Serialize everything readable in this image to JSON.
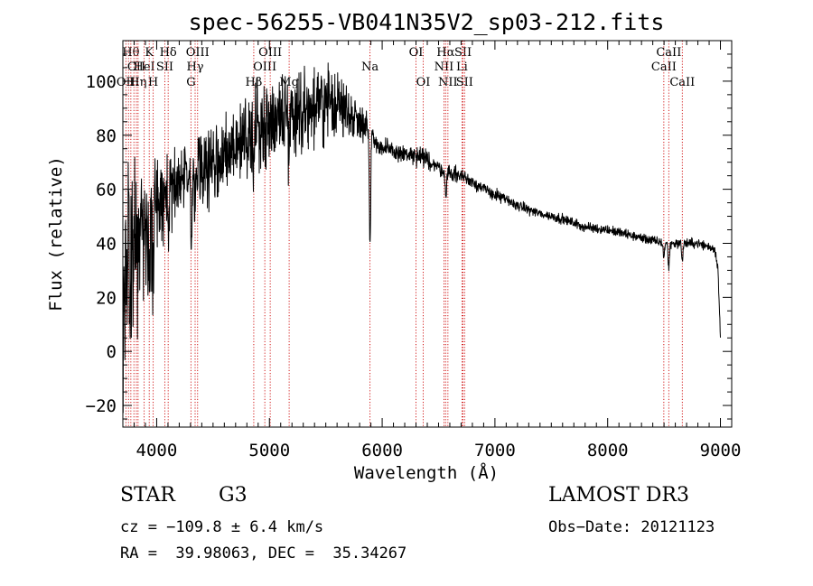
{
  "chart_data": {
    "type": "line",
    "title": "spec-56255-VB041N35V2_sp03-212.fits",
    "xlabel": "Wavelength (Å)",
    "ylabel": "Flux (relative)",
    "xlim": [
      3700,
      9100
    ],
    "ylim": [
      -28,
      115
    ],
    "x_major_ticks": [
      4000,
      5000,
      6000,
      7000,
      8000,
      9000
    ],
    "x_tick_labels": [
      "4000",
      "5000",
      "6000",
      "7000",
      "8000",
      "9000"
    ],
    "y_major_ticks": [
      -20,
      0,
      20,
      40,
      60,
      80,
      100
    ],
    "y_tick_labels": [
      "−20",
      "0",
      "20",
      "40",
      "60",
      "80",
      "100"
    ],
    "grid": false,
    "line_color": "#000000",
    "marker_color": "#cc0000",
    "spectrum_anchors": {
      "x": [
        3700,
        3730,
        3760,
        3800,
        3850,
        3900,
        3950,
        4000,
        4100,
        4200,
        4300,
        4400,
        4500,
        4600,
        4700,
        4800,
        4900,
        5000,
        5100,
        5200,
        5300,
        5400,
        5500,
        5600,
        5700,
        5800,
        5850,
        5900,
        6000,
        6100,
        6200,
        6300,
        6400,
        6500,
        6600,
        6700,
        6800,
        6900,
        7000,
        7200,
        7400,
        7600,
        7800,
        8000,
        8200,
        8400,
        8500,
        8600,
        8800,
        8950,
        8980,
        9000
      ],
      "y": [
        15,
        30,
        35,
        35,
        42,
        48,
        50,
        55,
        60,
        62,
        62,
        67,
        70,
        72,
        74,
        80,
        83,
        85,
        88,
        88,
        90,
        90,
        92,
        92,
        88,
        86,
        84,
        80,
        75,
        74,
        73,
        72,
        71,
        68,
        66,
        65,
        63,
        60,
        58,
        54,
        51,
        49,
        46,
        45,
        43,
        41,
        40,
        40,
        40,
        38,
        30,
        5
      ],
      "noise": [
        38,
        35,
        30,
        28,
        26,
        22,
        20,
        16,
        12,
        12,
        11,
        12,
        12,
        12,
        13,
        14,
        14,
        14,
        14,
        13,
        12,
        12,
        11,
        10,
        8,
        6,
        5,
        4,
        3,
        3,
        3,
        3,
        3,
        2.5,
        2.5,
        2.5,
        2,
        2,
        2,
        1.5,
        1.5,
        1.5,
        1.5,
        1.5,
        1.5,
        1.5,
        1.5,
        1.5,
        1.5,
        1.5,
        1.5,
        1.5
      ]
    },
    "absorption_features": [
      {
        "x": 3934,
        "depth": 28
      },
      {
        "x": 3969,
        "depth": 26
      },
      {
        "x": 4102,
        "depth": 15
      },
      {
        "x": 4308,
        "depth": 18
      },
      {
        "x": 4341,
        "depth": 12
      },
      {
        "x": 4861,
        "depth": 15
      },
      {
        "x": 5173,
        "depth": 12
      },
      {
        "x": 5892,
        "depth": 38
      },
      {
        "x": 6563,
        "depth": 10
      },
      {
        "x": 8498,
        "depth": 5
      },
      {
        "x": 8542,
        "depth": 9
      },
      {
        "x": 8662,
        "depth": 6
      }
    ],
    "line_markers": [
      {
        "x": 3727,
        "label": "OII",
        "row": 3
      },
      {
        "x": 3750,
        "label": "",
        "row": 0
      },
      {
        "x": 3771,
        "label": "Hθ",
        "row": 1
      },
      {
        "x": 3798,
        "label": "",
        "row": 0
      },
      {
        "x": 3820,
        "label": "CII",
        "row": 2
      },
      {
        "x": 3835,
        "label": "Hη",
        "row": 3
      },
      {
        "x": 3889,
        "label": "HeI",
        "row": 2
      },
      {
        "x": 3934,
        "label": "K",
        "row": 1
      },
      {
        "x": 3969,
        "label": "H",
        "row": 3
      },
      {
        "x": 4072,
        "label": "SII",
        "row": 2
      },
      {
        "x": 4102,
        "label": "Hδ",
        "row": 1
      },
      {
        "x": 4304,
        "label": "G",
        "row": 3
      },
      {
        "x": 4341,
        "label": "Hγ",
        "row": 2
      },
      {
        "x": 4363,
        "label": "OIII",
        "row": 1
      },
      {
        "x": 4861,
        "label": "Hβ",
        "row": 3
      },
      {
        "x": 4959,
        "label": "OIII",
        "row": 2
      },
      {
        "x": 5007,
        "label": "OIII",
        "row": 1
      },
      {
        "x": 5175,
        "label": "Mg",
        "row": 3
      },
      {
        "x": 5892,
        "label": "Na",
        "row": 2
      },
      {
        "x": 6300,
        "label": "OI",
        "row": 1
      },
      {
        "x": 6364,
        "label": "OI",
        "row": 3
      },
      {
        "x": 6548,
        "label": "NII",
        "row": 2
      },
      {
        "x": 6563,
        "label": "Hα",
        "row": 1
      },
      {
        "x": 6583,
        "label": "NII",
        "row": 3
      },
      {
        "x": 6708,
        "label": "Li",
        "row": 2
      },
      {
        "x": 6717,
        "label": "SII",
        "row": 1
      },
      {
        "x": 6731,
        "label": "SII",
        "row": 3
      },
      {
        "x": 8498,
        "label": "CaII",
        "row": 2
      },
      {
        "x": 8542,
        "label": "CaII",
        "row": 1
      },
      {
        "x": 8662,
        "label": "CaII",
        "row": 3
      }
    ]
  },
  "info": {
    "object_type": "STAR",
    "object_class": "G3",
    "survey": "LAMOST DR3",
    "cz_text": "cz = −109.8 ± 6.4 km/s",
    "obs_date_text": "Obs−Date: 20121123",
    "radec_text": "RA =  39.98063, DEC =  35.34267"
  }
}
